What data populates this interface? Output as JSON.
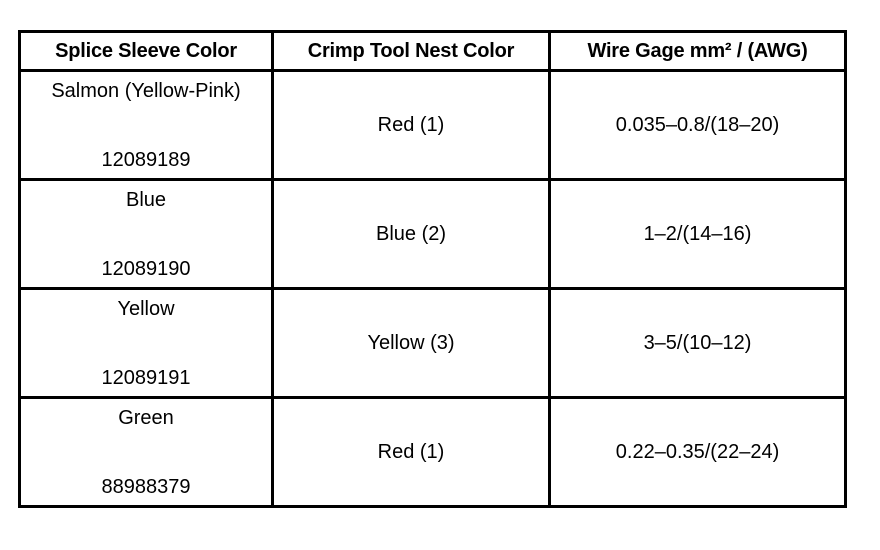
{
  "table": {
    "headers": [
      "Splice Sleeve Color",
      "Crimp Tool Nest Color",
      "Wire Gage mm² / (AWG)"
    ],
    "rows": [
      {
        "sleeve_color": "Salmon (Yellow-Pink)",
        "part_number": "12089189",
        "nest_color": "Red (1)",
        "wire_gage": "0.035–0.8/(18–20)"
      },
      {
        "sleeve_color": "Blue",
        "part_number": "12089190",
        "nest_color": "Blue (2)",
        "wire_gage": "1–2/(14–16)"
      },
      {
        "sleeve_color": "Yellow",
        "part_number": "12089191",
        "nest_color": "Yellow (3)",
        "wire_gage": "3–5/(10–12)"
      },
      {
        "sleeve_color": "Green",
        "part_number": "88988379",
        "nest_color": "Red (1)",
        "wire_gage": "0.22–0.35/(22–24)"
      }
    ]
  }
}
